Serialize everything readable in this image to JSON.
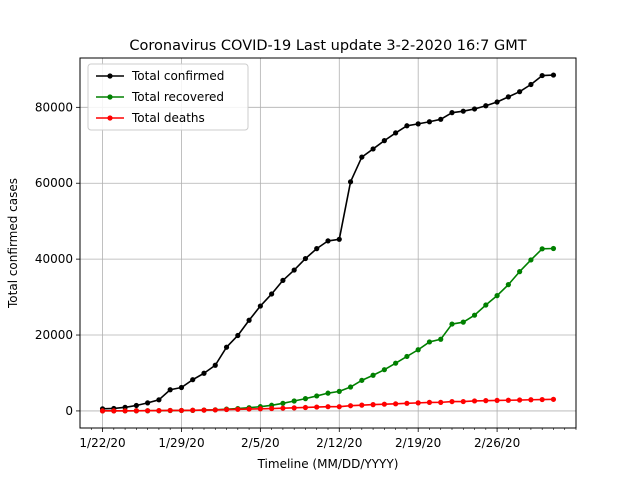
{
  "chart_data": {
    "type": "line",
    "title": "Coronavirus COVID-19 Last update 3-2-2020 16:7 GMT",
    "xlabel": "Timeline (MM/DD/YYYY)",
    "ylabel": "Total confirmed cases",
    "x": [
      "2020-01-22",
      "2020-01-23",
      "2020-01-24",
      "2020-01-25",
      "2020-01-26",
      "2020-01-27",
      "2020-01-28",
      "2020-01-29",
      "2020-01-30",
      "2020-01-31",
      "2020-02-01",
      "2020-02-02",
      "2020-02-03",
      "2020-02-04",
      "2020-02-05",
      "2020-02-06",
      "2020-02-07",
      "2020-02-08",
      "2020-02-09",
      "2020-02-10",
      "2020-02-11",
      "2020-02-12",
      "2020-02-13",
      "2020-02-14",
      "2020-02-15",
      "2020-02-16",
      "2020-02-17",
      "2020-02-18",
      "2020-02-19",
      "2020-02-20",
      "2020-02-21",
      "2020-02-22",
      "2020-02-23",
      "2020-02-24",
      "2020-02-25",
      "2020-02-26",
      "2020-02-27",
      "2020-02-28",
      "2020-02-29",
      "2020-03-01",
      "2020-03-02"
    ],
    "xlim": [
      "2020-01-20",
      "2020-03-04"
    ],
    "xticks": [
      {
        "date": "2020-01-22",
        "label": "1/22/20"
      },
      {
        "date": "2020-01-29",
        "label": "1/29/20"
      },
      {
        "date": "2020-02-05",
        "label": "2/5/20"
      },
      {
        "date": "2020-02-12",
        "label": "2/12/20"
      },
      {
        "date": "2020-02-19",
        "label": "2/19/20"
      },
      {
        "date": "2020-02-26",
        "label": "2/26/20"
      }
    ],
    "ylim": [
      -4500,
      93000
    ],
    "yticks": [
      0,
      20000,
      40000,
      60000,
      80000
    ],
    "grid": true,
    "legend": "upper-left",
    "series": [
      {
        "name": "Total confirmed",
        "color": "#000000",
        "values": [
          555,
          653,
          941,
          1438,
          2118,
          2927,
          5578,
          6166,
          8234,
          9927,
          12038,
          16787,
          19881,
          23892,
          27636,
          30818,
          34392,
          37121,
          40151,
          42763,
          44803,
          45222,
          60370,
          66887,
          69032,
          71226,
          73260,
          75138,
          75641,
          76199,
          76843,
          78599,
          78985,
          79570,
          80415,
          81397,
          82756,
          84124,
          86013,
          88371,
          88500
        ]
      },
      {
        "name": "Total recovered",
        "color": "#008000",
        "values": [
          28,
          30,
          36,
          39,
          52,
          61,
          107,
          126,
          143,
          222,
          284,
          472,
          623,
          852,
          1124,
          1487,
          2011,
          2616,
          3244,
          3946,
          4683,
          5150,
          6295,
          8058,
          9395,
          10865,
          12583,
          14352,
          16121,
          18177,
          18890,
          22886,
          23394,
          25227,
          27905,
          30384,
          33277,
          36711,
          39782,
          42716,
          42800
        ]
      },
      {
        "name": "Total deaths",
        "color": "#ff0000",
        "values": [
          17,
          18,
          26,
          42,
          56,
          82,
          131,
          133,
          171,
          213,
          259,
          362,
          426,
          492,
          564,
          634,
          719,
          806,
          906,
          1013,
          1113,
          1118,
          1371,
          1523,
          1666,
          1770,
          1868,
          2007,
          2122,
          2247,
          2251,
          2458,
          2469,
          2629,
          2708,
          2770,
          2814,
          2872,
          2941,
          2996,
          3050
        ]
      }
    ]
  }
}
